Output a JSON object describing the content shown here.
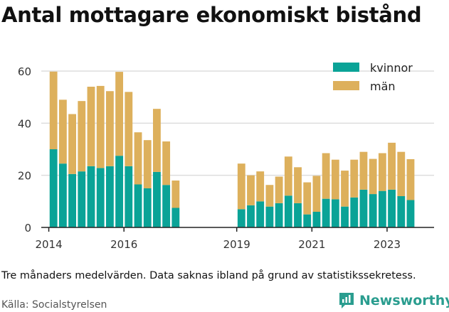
{
  "title": "Antal mottagare ekonomiskt bistånd",
  "note": "Tre månaders medelvärden. Data saknas ibland på grund av statistikssekretess.",
  "source": "Källa: Socialstyrelsen",
  "logo": {
    "text": "Newsworthy",
    "color": "#2a9d8f"
  },
  "colors": {
    "kvinnor": "#0aa397",
    "man": "#ddb05c",
    "grid": "#dddddd",
    "axis": "#222222"
  },
  "chart_data": {
    "type": "bar",
    "stacked": true,
    "title": "Antal mottagare ekonomiskt bistånd",
    "xlabel": "",
    "ylabel": "",
    "ylim": [
      0,
      60
    ],
    "yticks": [
      0,
      20,
      40,
      60
    ],
    "xticks": [
      {
        "label": "2014",
        "x": 2014.0
      },
      {
        "label": "2016",
        "x": 2016.0
      },
      {
        "label": "2019",
        "x": 2019.0
      },
      {
        "label": "2021",
        "x": 2021.0
      },
      {
        "label": "2023",
        "x": 2023.0
      }
    ],
    "xlim": [
      2013.8,
      2024.25
    ],
    "grid": true,
    "legend": "top-right",
    "series": [
      {
        "name": "kvinnor",
        "points": [
          {
            "x": 2014.125,
            "y": 30
          },
          {
            "x": 2014.375,
            "y": 24.5
          },
          {
            "x": 2014.625,
            "y": 20.5
          },
          {
            "x": 2014.875,
            "y": 21.5
          },
          {
            "x": 2015.125,
            "y": 23.5
          },
          {
            "x": 2015.375,
            "y": 22.8
          },
          {
            "x": 2015.625,
            "y": 23.5
          },
          {
            "x": 2015.875,
            "y": 27.5
          },
          {
            "x": 2016.125,
            "y": 23.5
          },
          {
            "x": 2016.375,
            "y": 16.5
          },
          {
            "x": 2016.625,
            "y": 15
          },
          {
            "x": 2016.875,
            "y": 21.3
          },
          {
            "x": 2017.125,
            "y": 16.3
          },
          {
            "x": 2017.375,
            "y": 7.5
          },
          {
            "x": 2019.125,
            "y": 7
          },
          {
            "x": 2019.375,
            "y": 8.5
          },
          {
            "x": 2019.625,
            "y": 10
          },
          {
            "x": 2019.875,
            "y": 8
          },
          {
            "x": 2020.125,
            "y": 9.3
          },
          {
            "x": 2020.375,
            "y": 12.2
          },
          {
            "x": 2020.625,
            "y": 9.3
          },
          {
            "x": 2020.875,
            "y": 5
          },
          {
            "x": 2021.125,
            "y": 6
          },
          {
            "x": 2021.375,
            "y": 11
          },
          {
            "x": 2021.625,
            "y": 10.8
          },
          {
            "x": 2021.875,
            "y": 8
          },
          {
            "x": 2022.125,
            "y": 11.5
          },
          {
            "x": 2022.375,
            "y": 14.5
          },
          {
            "x": 2022.625,
            "y": 12.8
          },
          {
            "x": 2022.875,
            "y": 14
          },
          {
            "x": 2023.125,
            "y": 14.5
          },
          {
            "x": 2023.375,
            "y": 12
          },
          {
            "x": 2023.625,
            "y": 10.5
          }
        ]
      },
      {
        "name": "män",
        "points": [
          {
            "x": 2014.125,
            "y": 29.8
          },
          {
            "x": 2014.375,
            "y": 24.5
          },
          {
            "x": 2014.625,
            "y": 23
          },
          {
            "x": 2014.875,
            "y": 27
          },
          {
            "x": 2015.125,
            "y": 30.5
          },
          {
            "x": 2015.375,
            "y": 31.5
          },
          {
            "x": 2015.625,
            "y": 28.8
          },
          {
            "x": 2015.875,
            "y": 32.2
          },
          {
            "x": 2016.125,
            "y": 28.5
          },
          {
            "x": 2016.375,
            "y": 20
          },
          {
            "x": 2016.625,
            "y": 18.5
          },
          {
            "x": 2016.875,
            "y": 24.2
          },
          {
            "x": 2017.125,
            "y": 16.7
          },
          {
            "x": 2017.375,
            "y": 10.5
          },
          {
            "x": 2019.125,
            "y": 17.5
          },
          {
            "x": 2019.375,
            "y": 11.5
          },
          {
            "x": 2019.625,
            "y": 11.5
          },
          {
            "x": 2019.875,
            "y": 8.3
          },
          {
            "x": 2020.125,
            "y": 10.2
          },
          {
            "x": 2020.375,
            "y": 15
          },
          {
            "x": 2020.625,
            "y": 13.8
          },
          {
            "x": 2020.875,
            "y": 12.3
          },
          {
            "x": 2021.125,
            "y": 13.8
          },
          {
            "x": 2021.375,
            "y": 17.5
          },
          {
            "x": 2021.625,
            "y": 15.2
          },
          {
            "x": 2021.875,
            "y": 13.8
          },
          {
            "x": 2022.125,
            "y": 14.5
          },
          {
            "x": 2022.375,
            "y": 14.5
          },
          {
            "x": 2022.625,
            "y": 13.5
          },
          {
            "x": 2022.875,
            "y": 14.5
          },
          {
            "x": 2023.125,
            "y": 18
          },
          {
            "x": 2023.375,
            "y": 17
          },
          {
            "x": 2023.625,
            "y": 15.7
          }
        ]
      }
    ]
  }
}
